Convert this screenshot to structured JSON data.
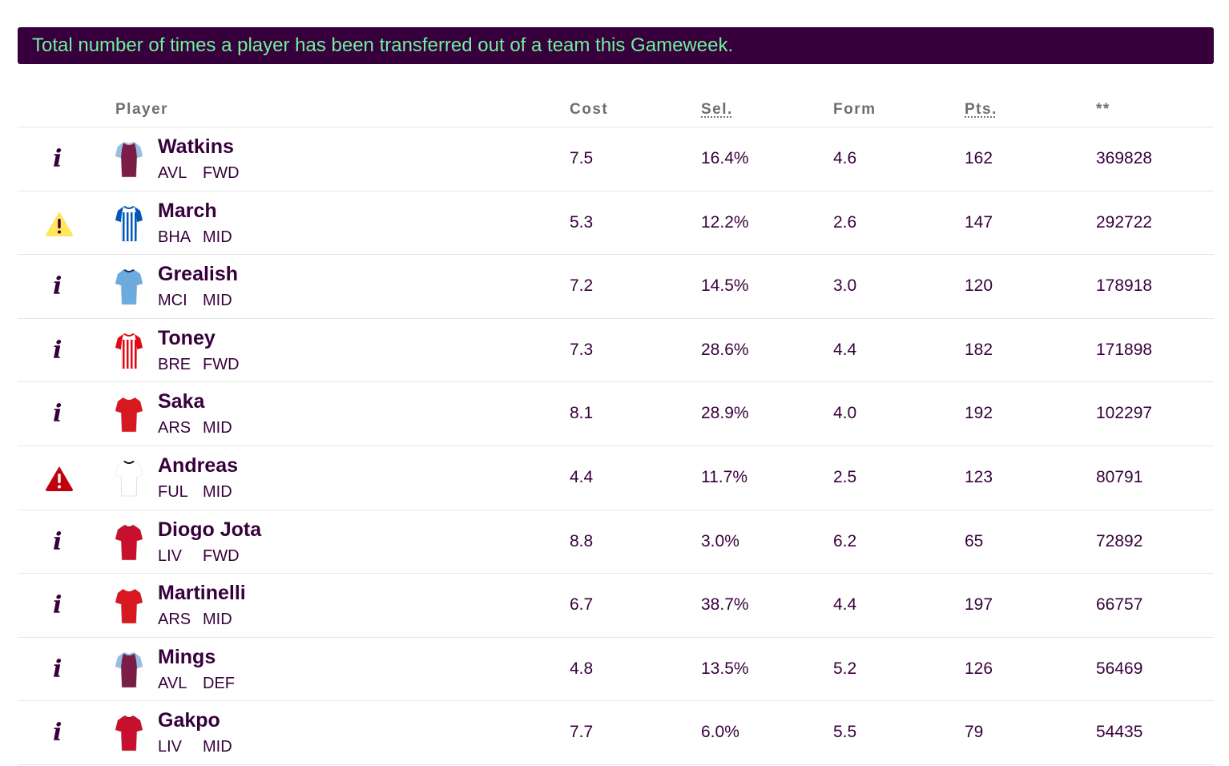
{
  "banner": "Total number of times a player has been transferred out of a team this Gameweek.",
  "headers": {
    "player": "Player",
    "cost": "Cost",
    "sel": "Sel.",
    "form": "Form",
    "pts": "Pts.",
    "transfers": "**"
  },
  "colors": {
    "brand": "#37003c",
    "banner_text": "#6ff19a",
    "warning_yellow": "#ffe65b",
    "warning_red": "#c0020d"
  },
  "rows": [
    {
      "status": "info",
      "name": "Watkins",
      "team": "AVL",
      "pos": "FWD",
      "cost": "7.5",
      "sel": "16.4%",
      "form": "4.6",
      "pts": "162",
      "transfers": "369828",
      "kit": "avl"
    },
    {
      "status": "warning-yellow",
      "name": "March",
      "team": "BHA",
      "pos": "MID",
      "cost": "5.3",
      "sel": "12.2%",
      "form": "2.6",
      "pts": "147",
      "transfers": "292722",
      "kit": "bha"
    },
    {
      "status": "info",
      "name": "Grealish",
      "team": "MCI",
      "pos": "MID",
      "cost": "7.2",
      "sel": "14.5%",
      "form": "3.0",
      "pts": "120",
      "transfers": "178918",
      "kit": "mci"
    },
    {
      "status": "info",
      "name": "Toney",
      "team": "BRE",
      "pos": "FWD",
      "cost": "7.3",
      "sel": "28.6%",
      "form": "4.4",
      "pts": "182",
      "transfers": "171898",
      "kit": "bre"
    },
    {
      "status": "info",
      "name": "Saka",
      "team": "ARS",
      "pos": "MID",
      "cost": "8.1",
      "sel": "28.9%",
      "form": "4.0",
      "pts": "192",
      "transfers": "102297",
      "kit": "ars"
    },
    {
      "status": "warning-red",
      "name": "Andreas",
      "team": "FUL",
      "pos": "MID",
      "cost": "4.4",
      "sel": "11.7%",
      "form": "2.5",
      "pts": "123",
      "transfers": "80791",
      "kit": "ful"
    },
    {
      "status": "info",
      "name": "Diogo Jota",
      "team": "LIV",
      "pos": "FWD",
      "cost": "8.8",
      "sel": "3.0%",
      "form": "6.2",
      "pts": "65",
      "transfers": "72892",
      "kit": "liv"
    },
    {
      "status": "info",
      "name": "Martinelli",
      "team": "ARS",
      "pos": "MID",
      "cost": "6.7",
      "sel": "38.7%",
      "form": "4.4",
      "pts": "197",
      "transfers": "66757",
      "kit": "ars"
    },
    {
      "status": "info",
      "name": "Mings",
      "team": "AVL",
      "pos": "DEF",
      "cost": "4.8",
      "sel": "13.5%",
      "form": "5.2",
      "pts": "126",
      "transfers": "56469",
      "kit": "avl"
    },
    {
      "status": "info",
      "name": "Gakpo",
      "team": "LIV",
      "pos": "MID",
      "cost": "7.7",
      "sel": "6.0%",
      "form": "5.5",
      "pts": "79",
      "transfers": "54435",
      "kit": "liv"
    }
  ]
}
